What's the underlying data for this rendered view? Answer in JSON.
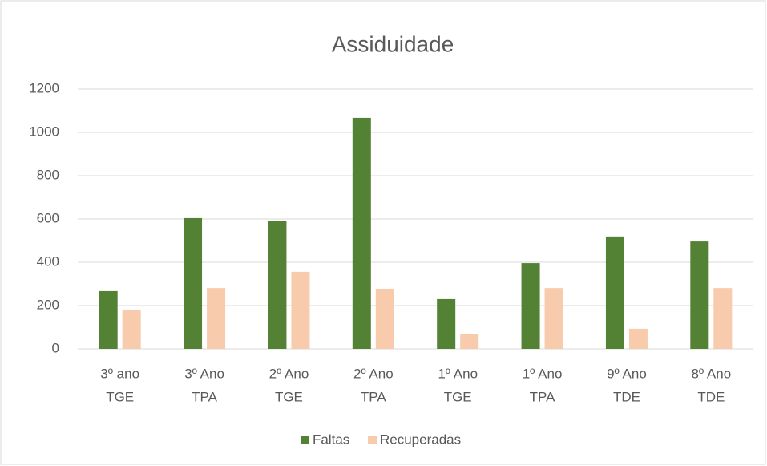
{
  "chart_data": {
    "type": "bar",
    "title": "Assiduidade",
    "categories": [
      [
        "3º ano",
        "TGE"
      ],
      [
        "3º Ano",
        "TPA"
      ],
      [
        "2º Ano",
        "TGE"
      ],
      [
        "2º Ano",
        "TPA"
      ],
      [
        "1º Ano",
        "TGE"
      ],
      [
        "1º Ano",
        "TPA"
      ],
      [
        "9º Ano",
        "TDE"
      ],
      [
        "8º Ano",
        "TDE"
      ]
    ],
    "series": [
      {
        "name": "Faltas",
        "color": "#548235",
        "values": [
          267,
          604,
          589,
          1067,
          230,
          396,
          519,
          496
        ]
      },
      {
        "name": "Recuperadas",
        "color": "#f8cbad",
        "values": [
          181,
          281,
          356,
          278,
          70,
          281,
          93,
          281
        ]
      }
    ],
    "ylim": [
      0,
      1200
    ],
    "yticks": [
      0,
      200,
      400,
      600,
      800,
      1000,
      1200
    ],
    "grid": true,
    "legend": "bottom"
  }
}
